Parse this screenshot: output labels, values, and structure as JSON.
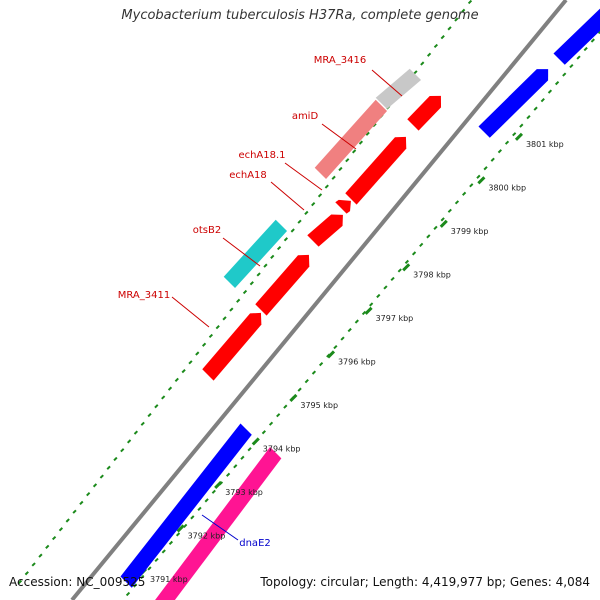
{
  "title": "Mycobacterium tuberculosis H37Ra, complete genome",
  "footer": {
    "accession": "Accession: NC_009525",
    "summary": "Topology: circular; Length: 4,419,977 bp; Genes: 4,084"
  },
  "colors": {
    "backbone": "#808080",
    "forward_gene": "#ff0000",
    "reverse_gene": "#0000ff",
    "rna_cyan": "#1fc9c9",
    "pseudo_pink": "#f08080",
    "grey_gene": "#c8c8c8",
    "magenta_gene": "#ff1493",
    "tick_color": "#1b8a1b",
    "forward_label": "#cc0000",
    "reverse_label": "#0000cc"
  },
  "ruler": {
    "unit": "kbp",
    "ticks": [
      {
        "pos_kbp": 3791,
        "label": "3791 kbp"
      },
      {
        "pos_kbp": 3792,
        "label": "3792 kbp"
      },
      {
        "pos_kbp": 3793,
        "label": "3793 kbp"
      },
      {
        "pos_kbp": 3794,
        "label": "3794 kbp"
      },
      {
        "pos_kbp": 3795,
        "label": "3795 kbp"
      },
      {
        "pos_kbp": 3796,
        "label": "3796 kbp"
      },
      {
        "pos_kbp": 3797,
        "label": "3797 kbp"
      },
      {
        "pos_kbp": 3798,
        "label": "3798 kbp"
      },
      {
        "pos_kbp": 3799,
        "label": "3799 kbp"
      },
      {
        "pos_kbp": 3800,
        "label": "3800 kbp"
      },
      {
        "pos_kbp": 3801,
        "label": "3801 kbp"
      }
    ]
  },
  "gene_labels": [
    {
      "name": "MRA_3416",
      "strand": "forward"
    },
    {
      "name": "amiD",
      "strand": "forward"
    },
    {
      "name": "echA18.1",
      "strand": "forward"
    },
    {
      "name": "echA18",
      "strand": "forward"
    },
    {
      "name": "otsB2",
      "strand": "forward"
    },
    {
      "name": "MRA_3411",
      "strand": "forward"
    },
    {
      "name": "dnaE2",
      "strand": "reverse"
    }
  ]
}
